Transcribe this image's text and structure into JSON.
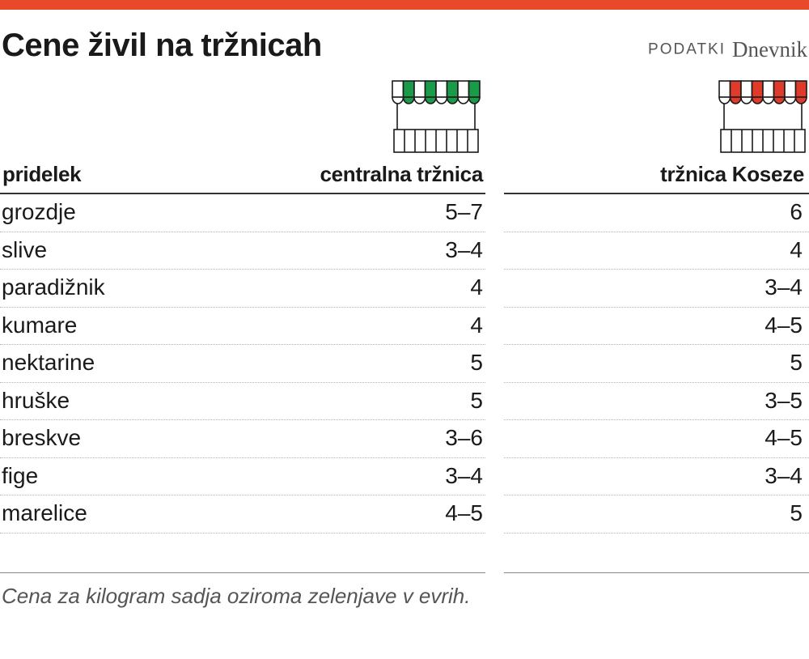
{
  "header": {
    "title": "Cene živil na tržnicah",
    "source_label": "PODATKI",
    "source_brand": "Dnevnik"
  },
  "colors": {
    "accent": "#e8492b",
    "central_awning": "#1a9b49",
    "koseze_awning": "#e03a2a"
  },
  "icons": {
    "central": "market-stall-green-icon",
    "koseze": "market-stall-red-icon"
  },
  "chart_data": {
    "type": "table",
    "columns": [
      "pridelek",
      "centralna tržnica",
      "tržnica Koseze"
    ],
    "rows": [
      [
        "grozdje",
        "5–7",
        "6"
      ],
      [
        "slive",
        "3–4",
        "4"
      ],
      [
        "paradižnik",
        "4",
        "3–4"
      ],
      [
        "kumare",
        "4",
        "4–5"
      ],
      [
        "nektarine",
        "5",
        "5"
      ],
      [
        "hruške",
        "5",
        "3–5"
      ],
      [
        "breskve",
        "3–6",
        "4–5"
      ],
      [
        "fige",
        "3–4",
        "3–4"
      ],
      [
        "marelice",
        "4–5",
        "5"
      ]
    ],
    "note": "Cena za kilogram sadja oziroma zelenjave v evrih."
  }
}
